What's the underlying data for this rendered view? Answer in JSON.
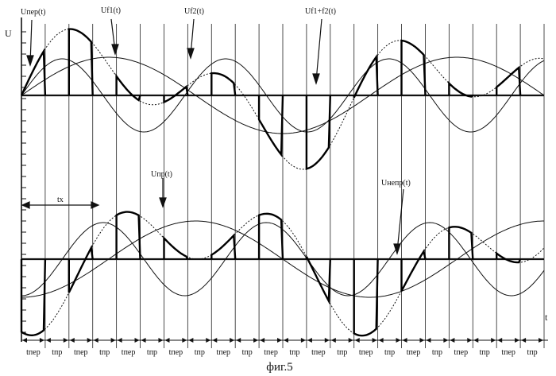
{
  "figure": {
    "caption": "фиг.5",
    "axis_y_label": "U",
    "axis_x_label": "t",
    "top_panel": {
      "labels": {
        "u_nep": "Uпер(t)",
        "u_f1": "Uf1(t)",
        "u_f2": "Uf2(t)",
        "u_f1f2": "Uf1+f2(t)"
      }
    },
    "bottom_panel": {
      "labels": {
        "u_np": "Uпр(t)",
        "u_nenp": "Uнепр(t)",
        "t_x": "tx"
      }
    },
    "interval_labels": [
      "tпер",
      "tпр",
      "tпер",
      "tпр",
      "tпер",
      "tпр",
      "tпер",
      "tпр",
      "tпер",
      "tпр",
      "tпер",
      "tпр",
      "tпер",
      "tпр",
      "tпер",
      "tпр",
      "tпер",
      "tпр",
      "tпер",
      "tпр",
      "tпер",
      "tпр"
    ]
  }
}
